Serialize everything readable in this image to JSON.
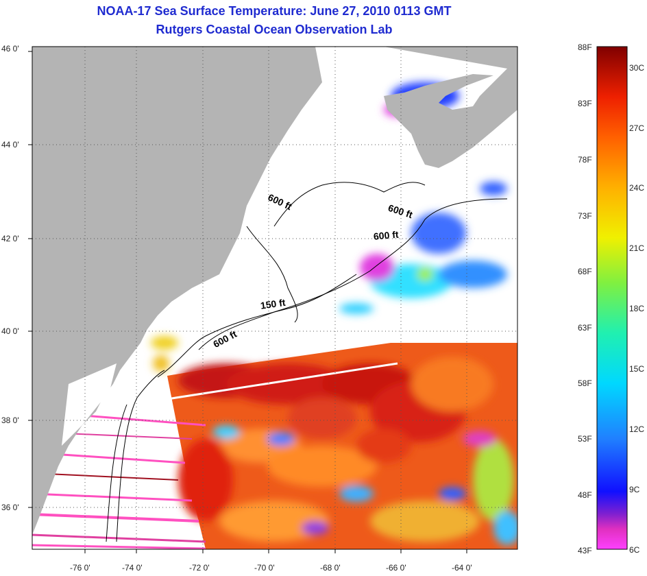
{
  "title": "NOAA-17 Sea Surface Temperature:  June 27, 2010 0113 GMT",
  "subtitle": "Rutgers Coastal Ocean Observation Lab",
  "lat_labels": [
    "46 0'",
    "44 0'",
    "42 0'",
    "40 0'",
    "38 0'",
    "36 0'"
  ],
  "lon_labels": [
    "-76 0'",
    "-74 0'",
    "-72 0'",
    "-70 0'",
    "-68 0'",
    "-66 0'",
    "-64 0'"
  ],
  "contour_labels": [
    "600 ft",
    "600 ft",
    "600 ft",
    "150 ft",
    "600 ft"
  ],
  "colorbar": {
    "fahrenheit": [
      "88F",
      "83F",
      "78F",
      "73F",
      "68F",
      "63F",
      "58F",
      "53F",
      "48F",
      "43F"
    ],
    "celsius": [
      "30C",
      "27C",
      "24C",
      "21C",
      "18C",
      "15C",
      "12C",
      "9C",
      "6C"
    ]
  },
  "colors": {
    "title": "#1f2bd0",
    "land": "#b4b4b4",
    "cloud": "#ffffff",
    "warm_water": "#e8301a",
    "very_warm_water": "#c41212"
  }
}
